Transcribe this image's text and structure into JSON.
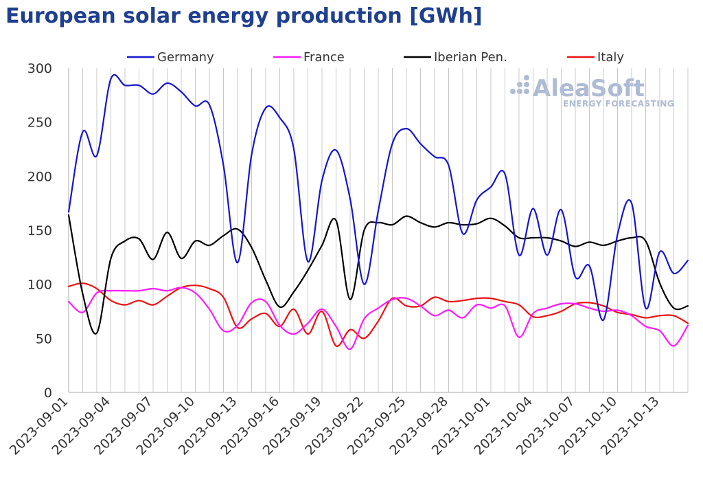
{
  "title": "European solar energy production [GWh]",
  "watermark": {
    "brand": "AleaSoft",
    "tagline": "ENERGY FORECASTING"
  },
  "chart_data": {
    "type": "line",
    "title": "European solar energy production [GWh]",
    "xlabel": "",
    "ylabel": "",
    "ylim": [
      0,
      300
    ],
    "yticks": [
      0,
      50,
      100,
      150,
      200,
      250,
      300
    ],
    "x": [
      "2023-09-01",
      "2023-09-02",
      "2023-09-03",
      "2023-09-04",
      "2023-09-05",
      "2023-09-06",
      "2023-09-07",
      "2023-09-08",
      "2023-09-09",
      "2023-09-10",
      "2023-09-11",
      "2023-09-12",
      "2023-09-13",
      "2023-09-14",
      "2023-09-15",
      "2023-09-16",
      "2023-09-17",
      "2023-09-18",
      "2023-09-19",
      "2023-09-20",
      "2023-09-21",
      "2023-09-22",
      "2023-09-23",
      "2023-09-24",
      "2023-09-25",
      "2023-09-26",
      "2023-09-27",
      "2023-09-28",
      "2023-09-29",
      "2023-09-30",
      "2023-10-01",
      "2023-10-02",
      "2023-10-03",
      "2023-10-04",
      "2023-10-05",
      "2023-10-06",
      "2023-10-07",
      "2023-10-08",
      "2023-10-09",
      "2023-10-10",
      "2023-10-11",
      "2023-10-12",
      "2023-10-13",
      "2023-10-14",
      "2023-10-15"
    ],
    "xtick_labels": [
      "2023-09-01",
      "2023-09-04",
      "2023-09-07",
      "2023-09-10",
      "2023-09-13",
      "2023-09-16",
      "2023-09-19",
      "2023-09-22",
      "2023-09-25",
      "2023-09-28",
      "2023-10-01",
      "2023-10-04",
      "2023-10-07",
      "2023-10-10",
      "2023-10-13"
    ],
    "grid": "vertical",
    "legend_position": "top",
    "series": [
      {
        "name": "Germany",
        "color": "#1515d2",
        "values": [
          167,
          241,
          219,
          290,
          284,
          284,
          276,
          286,
          278,
          265,
          266,
          210,
          120,
          220,
          263,
          254,
          225,
          121,
          196,
          224,
          179,
          100,
          168,
          230,
          244,
          230,
          218,
          210,
          147,
          178,
          190,
          202,
          127,
          170,
          127,
          169,
          107,
          117,
          67,
          146,
          175,
          78,
          130,
          110,
          122
        ]
      },
      {
        "name": "France",
        "color": "#ff1aff",
        "values": [
          84,
          74,
          92,
          94,
          94,
          94,
          96,
          94,
          97,
          92,
          77,
          57,
          62,
          83,
          84,
          62,
          54,
          64,
          77,
          61,
          40,
          68,
          78,
          86,
          87,
          80,
          71,
          76,
          69,
          81,
          78,
          80,
          51,
          73,
          78,
          82,
          82,
          78,
          75,
          76,
          71,
          61,
          57,
          43,
          62
        ]
      },
      {
        "name": "Iberian Pen.",
        "color": "#000000",
        "values": [
          164,
          91,
          55,
          124,
          140,
          142,
          123,
          148,
          124,
          140,
          136,
          145,
          151,
          134,
          104,
          79,
          93,
          113,
          136,
          159,
          86,
          150,
          157,
          155,
          163,
          157,
          153,
          157,
          155,
          156,
          161,
          154,
          143,
          143,
          143,
          140,
          135,
          139,
          136,
          140,
          143,
          140,
          101,
          78,
          80
        ]
      },
      {
        "name": "Italy",
        "color": "#ee1111",
        "values": [
          98,
          101,
          96,
          85,
          81,
          85,
          81,
          89,
          97,
          99,
          96,
          88,
          60,
          68,
          73,
          61,
          77,
          54,
          75,
          43,
          58,
          50,
          66,
          87,
          80,
          80,
          88,
          84,
          85,
          87,
          87,
          84,
          81,
          70,
          71,
          75,
          82,
          83,
          80,
          74,
          72,
          69,
          71,
          71,
          64
        ]
      }
    ]
  }
}
